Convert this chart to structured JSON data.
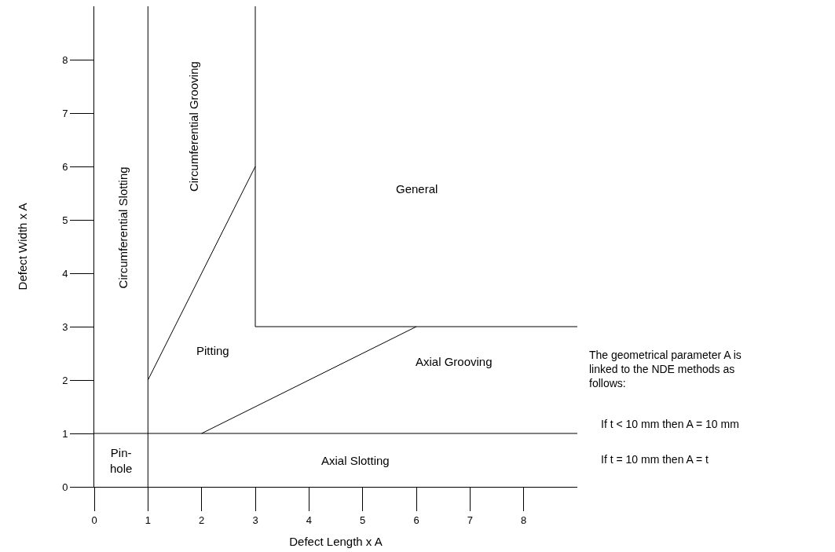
{
  "chart_data": {
    "type": "line",
    "xlabel": "Defect Length x A",
    "ylabel": "Defect Width x A",
    "xlim": [
      0,
      9
    ],
    "ylim": [
      0,
      9
    ],
    "xticks": [
      0,
      1,
      2,
      3,
      4,
      5,
      6,
      7,
      8
    ],
    "yticks": [
      0,
      1,
      2,
      3,
      4,
      5,
      6,
      7,
      8
    ],
    "marker": "none",
    "line_style": "solid",
    "series": [
      {
        "color": "#000000",
        "x": [
          1,
          1
        ],
        "values": [
          0,
          9
        ]
      },
      {
        "color": "#000000",
        "x": [
          0,
          9
        ],
        "values": [
          1,
          1
        ]
      },
      {
        "color": "#000000",
        "x": [
          1,
          3
        ],
        "values": [
          2,
          6
        ]
      },
      {
        "color": "#000000",
        "x": [
          3,
          3
        ],
        "values": [
          9,
          3
        ]
      },
      {
        "color": "#000000",
        "x": [
          3,
          9
        ],
        "values": [
          3,
          3
        ]
      },
      {
        "color": "#000000",
        "x": [
          2,
          6
        ],
        "values": [
          1,
          3
        ]
      }
    ],
    "annotations": [
      "Circumferential Slotting",
      "Circumferential Grooving",
      "General",
      "Pitting",
      "Axial Grooving",
      "Axial Slotting",
      "Pin-\nhole",
      "The geometrical parameter A is\nlinked to the NDE methods as\nfollows:",
      "If t < 10 mm then A = 10 mm",
      "If t = 10 mm then A = t"
    ]
  }
}
